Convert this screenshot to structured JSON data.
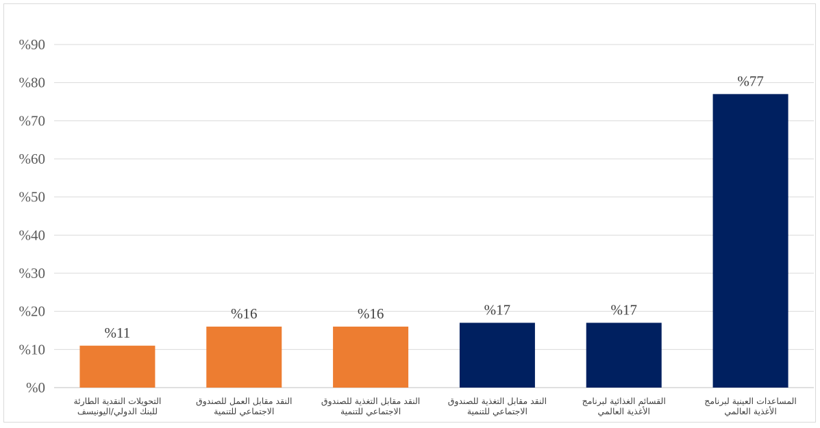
{
  "chart_data": {
    "type": "bar",
    "title": "",
    "xlabel": "",
    "ylabel": "",
    "ylim": [
      0,
      90
    ],
    "y_tick_values": [
      0,
      10,
      20,
      30,
      40,
      50,
      60,
      70,
      80,
      90
    ],
    "y_tick_labels": [
      "%0",
      "%10",
      "%20",
      "%30",
      "%40",
      "%50",
      "%60",
      "%70",
      "%80",
      "%90"
    ],
    "grid": true,
    "legend": "none",
    "categories": [
      [
        "التحويلات النقدية الطارئة",
        "للبنك الدولي/اليونيسف"
      ],
      [
        "النقد مقابل العمل للصندوق",
        "الاجتماعي للتنمية"
      ],
      [
        "النقد مقابل التغذية للصندوق",
        "الاجتماعي للتنمية"
      ],
      [
        "النقد مقابل التغذية للصندوق",
        "الاجتماعي للتنمية"
      ],
      [
        "القسائم الغذائية لبرنامج",
        "الأغذية العالمي"
      ],
      [
        "المساعدات العينية لبرنامج",
        "الأغذية العالمي"
      ]
    ],
    "values": [
      11,
      16,
      16,
      17,
      17,
      77
    ],
    "data_labels": [
      "%11",
      "%16",
      "%16",
      "%17",
      "%17",
      "%77"
    ],
    "colors": [
      "#ED7D31",
      "#ED7D31",
      "#ED7D31",
      "#002060",
      "#002060",
      "#002060"
    ]
  }
}
